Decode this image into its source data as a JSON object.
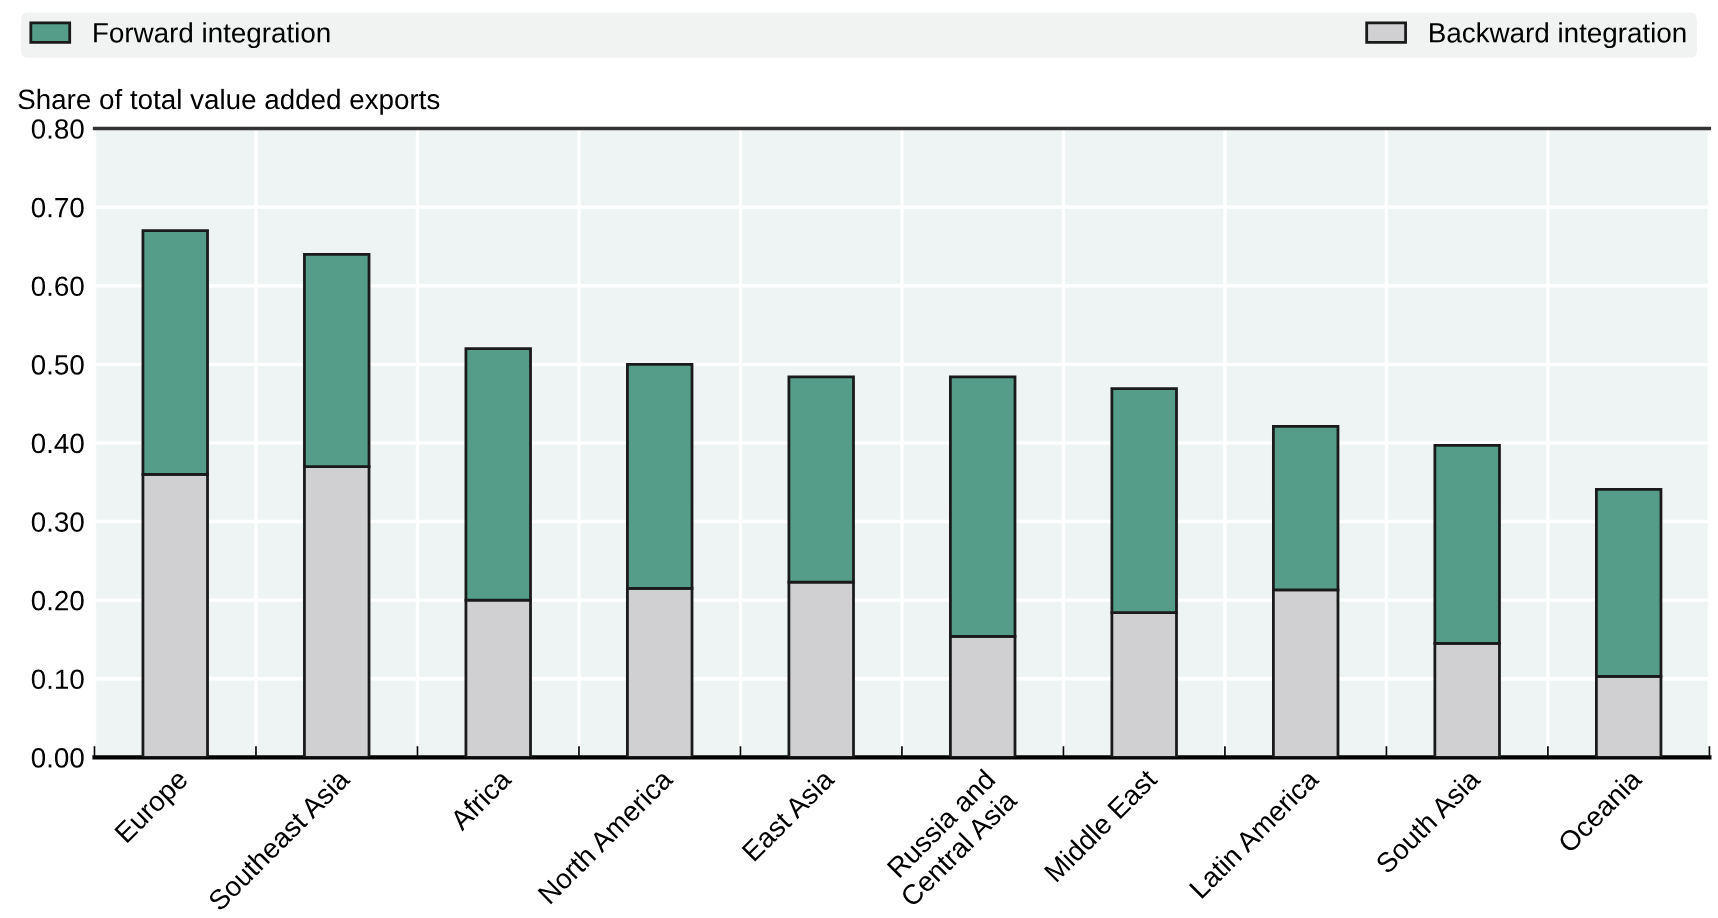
{
  "chart_data": {
    "type": "bar",
    "stacked": true,
    "ylabel": "Share of total value added exports",
    "categories": [
      "Europe",
      "Southeast Asia",
      "Africa",
      "North America",
      "East Asia",
      "Russia and\nCentral Asia",
      "Middle East",
      "Latin America",
      "South Asia",
      "Oceania"
    ],
    "series": [
      {
        "name": "Backward integration",
        "color": "#d0d0d2",
        "values": [
          0.36,
          0.37,
          0.2,
          0.215,
          0.223,
          0.154,
          0.184,
          0.213,
          0.145,
          0.103
        ]
      },
      {
        "name": "Forward integration",
        "color": "#559d88",
        "values": [
          0.31,
          0.27,
          0.32,
          0.285,
          0.261,
          0.33,
          0.285,
          0.208,
          0.252,
          0.238
        ]
      }
    ],
    "ylim": [
      0,
      0.8
    ],
    "yticks": [
      {
        "value": 0,
        "label": "0.00"
      },
      {
        "value": 0.1,
        "label": "0.10"
      },
      {
        "value": 0.2,
        "label": "0.20"
      },
      {
        "value": 0.3,
        "label": "0.30"
      },
      {
        "value": 0.4,
        "label": "0.40"
      },
      {
        "value": 0.5,
        "label": "0.50"
      },
      {
        "value": 0.6,
        "label": "0.60"
      },
      {
        "value": 0.7,
        "label": "0.70"
      },
      {
        "value": 0.8,
        "label": "0.80"
      }
    ],
    "grid": true,
    "legend": "top"
  }
}
